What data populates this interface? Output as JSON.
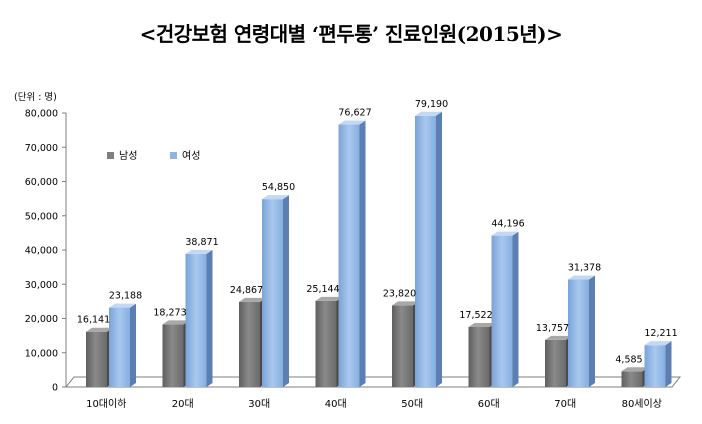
{
  "chart_data": {
    "type": "bar",
    "title": "<건강보험 연령대별 ‘편두통’ 진료인원(2015년)>",
    "unit_label": "(단위 : 명)",
    "categories": [
      "10대이하",
      "20대",
      "30대",
      "40대",
      "50대",
      "60대",
      "70대",
      "80세이상"
    ],
    "series": [
      {
        "name": "남성",
        "color": "#7f7f7f",
        "values": [
          16141,
          18273,
          24867,
          25144,
          23820,
          17522,
          13757,
          4585
        ],
        "labels": [
          "16,141",
          "18,273",
          "24,867",
          "25,144",
          "23,820",
          "17,522",
          "13,757",
          "4,585"
        ]
      },
      {
        "name": "여성",
        "color": "#8eb4e3",
        "values": [
          23188,
          38871,
          54850,
          76627,
          79190,
          44196,
          31378,
          12211
        ],
        "labels": [
          "23,188",
          "38,871",
          "54,850",
          "76,627",
          "79,190",
          "44,196",
          "31,378",
          "12,211"
        ]
      }
    ],
    "ylim": [
      0,
      80000
    ],
    "yticks": [
      0,
      10000,
      20000,
      30000,
      40000,
      50000,
      60000,
      70000,
      80000
    ],
    "ytick_labels": [
      "0",
      "10,000",
      "20,000",
      "30,000",
      "40,000",
      "50,000",
      "60,000",
      "70,000",
      "80,000"
    ],
    "legend_position": "top-left",
    "grid": false
  }
}
